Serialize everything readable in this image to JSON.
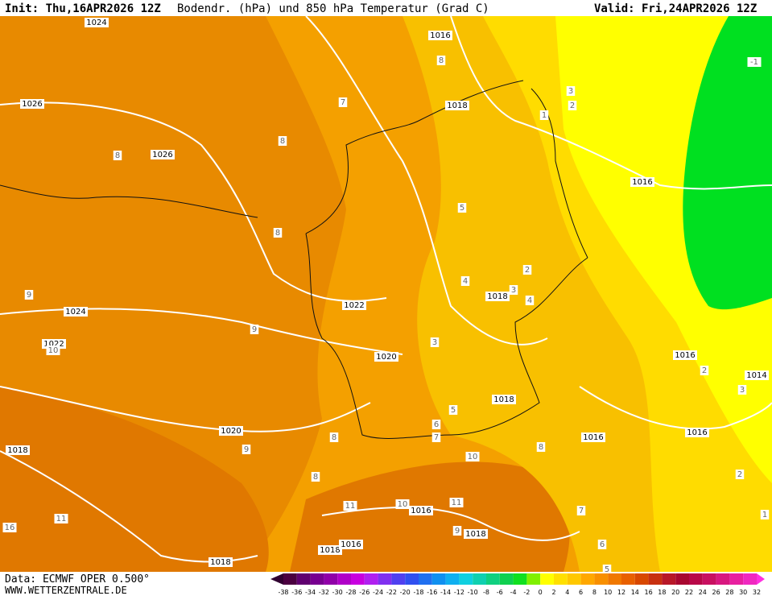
{
  "header": {
    "init": "Init: Thu,16APR2026 12Z",
    "title": "Bodendr. (hPa) und 850 hPa Temperatur (Grad C)",
    "valid": "Valid: Fri,24APR2026 12Z"
  },
  "map": {
    "labels": [
      "1024",
      "1016",
      "1026",
      "1018",
      "1026",
      "1016",
      "1024",
      "1022",
      "1018",
      "1022",
      "1020",
      "1016",
      "1014",
      "1018",
      "1020",
      "1016",
      "1016",
      "1018",
      "1016",
      "1018",
      "1018",
      "1016",
      "1018",
      "7",
      "8",
      "8",
      "8",
      "9",
      "9",
      "10",
      "5",
      "2",
      "4",
      "3",
      "4",
      "3",
      "2",
      "3",
      "5",
      "6",
      "7",
      "8",
      "9",
      "8",
      "10",
      "11",
      "11",
      "10",
      "9",
      "7",
      "2",
      "3",
      "2",
      "1",
      "11",
      "16",
      "8",
      "6",
      "5",
      "-1",
      "8",
      "1"
    ]
  },
  "footer": {
    "data": "Data: ECMWF OPER 0.500°",
    "site": "WWW.WETTERZENTRALE.DE"
  },
  "colorbar": {
    "labels": [
      "-38",
      "-36",
      "-34",
      "-32",
      "-30",
      "-28",
      "-26",
      "-24",
      "-22",
      "-20",
      "-18",
      "-16",
      "-14",
      "-12",
      "-10",
      "-8",
      "-6",
      "-4",
      "-2",
      "0",
      "2",
      "4",
      "6",
      "8",
      "10",
      "12",
      "14",
      "16",
      "18",
      "20",
      "22",
      "24",
      "26",
      "28",
      "30",
      "32"
    ]
  }
}
